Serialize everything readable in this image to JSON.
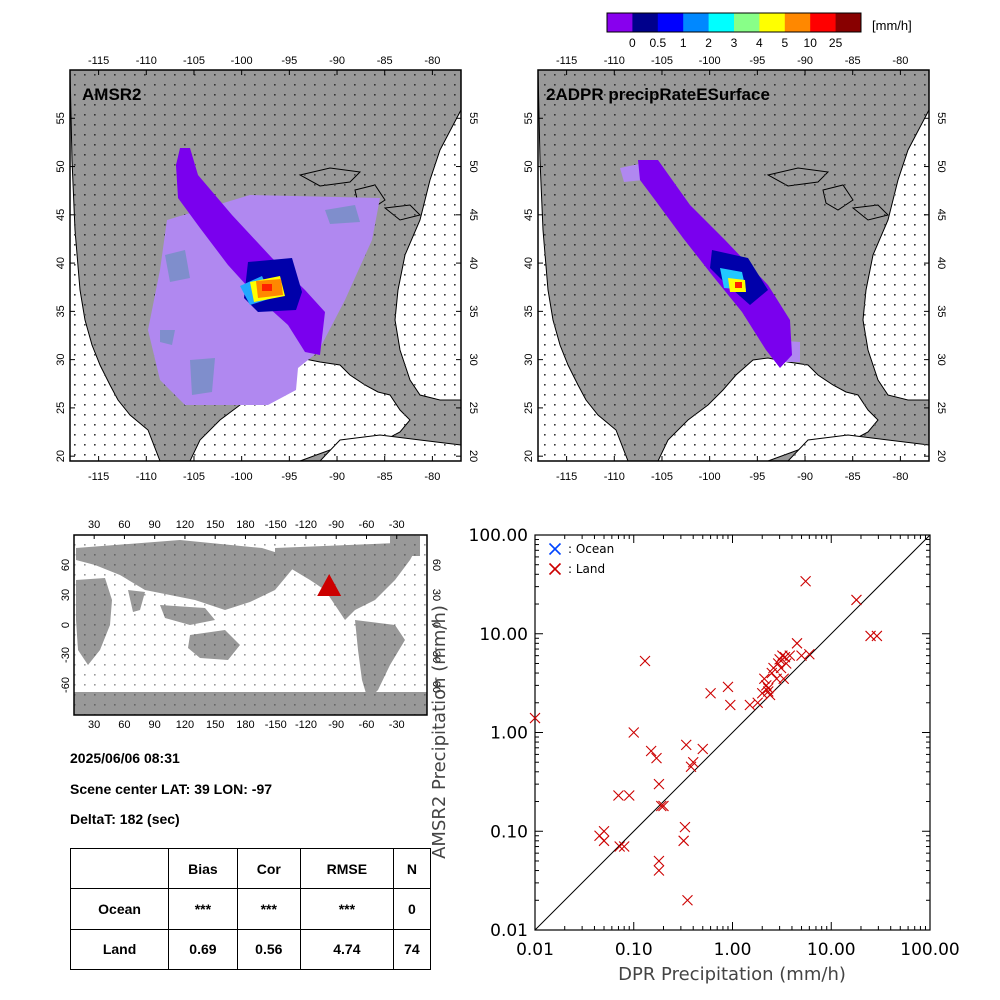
{
  "colorbar": {
    "unit_label": "[mm/h]",
    "tick_labels": [
      "0",
      "0.5",
      "1",
      "2",
      "3",
      "4",
      "5",
      "10",
      "25"
    ],
    "colors": [
      "#8800ee",
      "#00008c",
      "#0000ff",
      "#0088ff",
      "#00ffff",
      "#88ff88",
      "#ffff00",
      "#ff8800",
      "#ff0000",
      "#880000"
    ]
  },
  "maps": [
    {
      "title": "AMSR2",
      "lon_ticks": [
        "-115",
        "-110",
        "-105",
        "-100",
        "-95",
        "-90",
        "-85",
        "-80"
      ],
      "lat_ticks": [
        "20",
        "25",
        "30",
        "35",
        "40",
        "45",
        "50",
        "55"
      ]
    },
    {
      "title": "2ADPR precipRateESurface",
      "lon_ticks": [
        "-115",
        "-110",
        "-105",
        "-100",
        "-95",
        "-90",
        "-85",
        "-80"
      ],
      "lat_ticks": [
        "20",
        "25",
        "30",
        "35",
        "40",
        "45",
        "50",
        "55"
      ]
    }
  ],
  "world_map": {
    "lon_ticks": [
      "30",
      "60",
      "90",
      "120",
      "150",
      "180",
      "-150",
      "-120",
      "-90",
      "-60",
      "-30"
    ],
    "lat_ticks": [
      "-60",
      "-30",
      "0",
      "30",
      "60"
    ],
    "marker": {
      "lat": 39,
      "lon": -97,
      "color": "#cc0000"
    }
  },
  "scene": {
    "datetime": "2025/06/06 08:31",
    "center_label": "Scene center LAT: 39   LON: -97",
    "deltat_label": "DeltaT:  182 (sec)"
  },
  "stats_table": {
    "headers": [
      "",
      "Bias",
      "Cor",
      "RMSE",
      "N"
    ],
    "rows": [
      [
        "Ocean",
        "***",
        "***",
        "***",
        "0"
      ],
      [
        "Land",
        "0.69",
        "0.56",
        "4.74",
        "74"
      ]
    ]
  },
  "chart_data": {
    "type": "scatter",
    "xlabel": "DPR Precipitation (mm/h)",
    "ylabel": "AMSR2 Precipitation (mm/h)",
    "x_scale": "log",
    "y_scale": "log",
    "xlim": [
      0.01,
      100
    ],
    "ylim": [
      0.01,
      100
    ],
    "x_tick_labels": [
      "0.01",
      "0.10",
      "1.00",
      "10.00",
      "100.00"
    ],
    "y_tick_labels": [
      "0.01",
      "0.10",
      "1.00",
      "10.00",
      "100.00"
    ],
    "reference_line": "1:1",
    "legend_placement": "top-left",
    "series": [
      {
        "name": ": Ocean",
        "color": "#0044ff",
        "marker": "x",
        "x": [],
        "y": []
      },
      {
        "name": ": Land",
        "color": "#cc0000",
        "marker": "x",
        "x": [
          0.01,
          0.045,
          0.05,
          0.05,
          0.07,
          0.072,
          0.08,
          0.09,
          0.1,
          0.13,
          0.15,
          0.17,
          0.18,
          0.18,
          0.18,
          0.19,
          0.2,
          0.32,
          0.33,
          0.34,
          0.35,
          0.38,
          0.4,
          0.5,
          0.6,
          0.9,
          0.95,
          1.5,
          1.8,
          2.0,
          2.1,
          2.2,
          2.3,
          2.3,
          2.4,
          2.5,
          2.6,
          2.8,
          2.9,
          3.0,
          3.1,
          3.2,
          3.3,
          3.4,
          3.5,
          3.8,
          4.5,
          5.0,
          5.5,
          6.0,
          18.0,
          25.0,
          29.0
        ],
        "y": [
          1.4,
          0.09,
          0.1,
          0.08,
          0.23,
          0.07,
          0.07,
          0.23,
          1.0,
          5.3,
          0.65,
          0.55,
          0.05,
          0.04,
          0.3,
          0.18,
          0.18,
          0.08,
          0.11,
          0.75,
          0.02,
          0.45,
          0.5,
          0.68,
          2.5,
          2.9,
          1.9,
          1.9,
          2.0,
          2.5,
          3.5,
          3.0,
          2.8,
          2.6,
          2.4,
          4.0,
          4.5,
          3.5,
          5.0,
          5.5,
          4.5,
          6.0,
          3.5,
          5.8,
          5.0,
          6.0,
          8.0,
          6.0,
          34.0,
          6.2,
          22.0,
          9.5,
          9.5
        ]
      }
    ]
  }
}
